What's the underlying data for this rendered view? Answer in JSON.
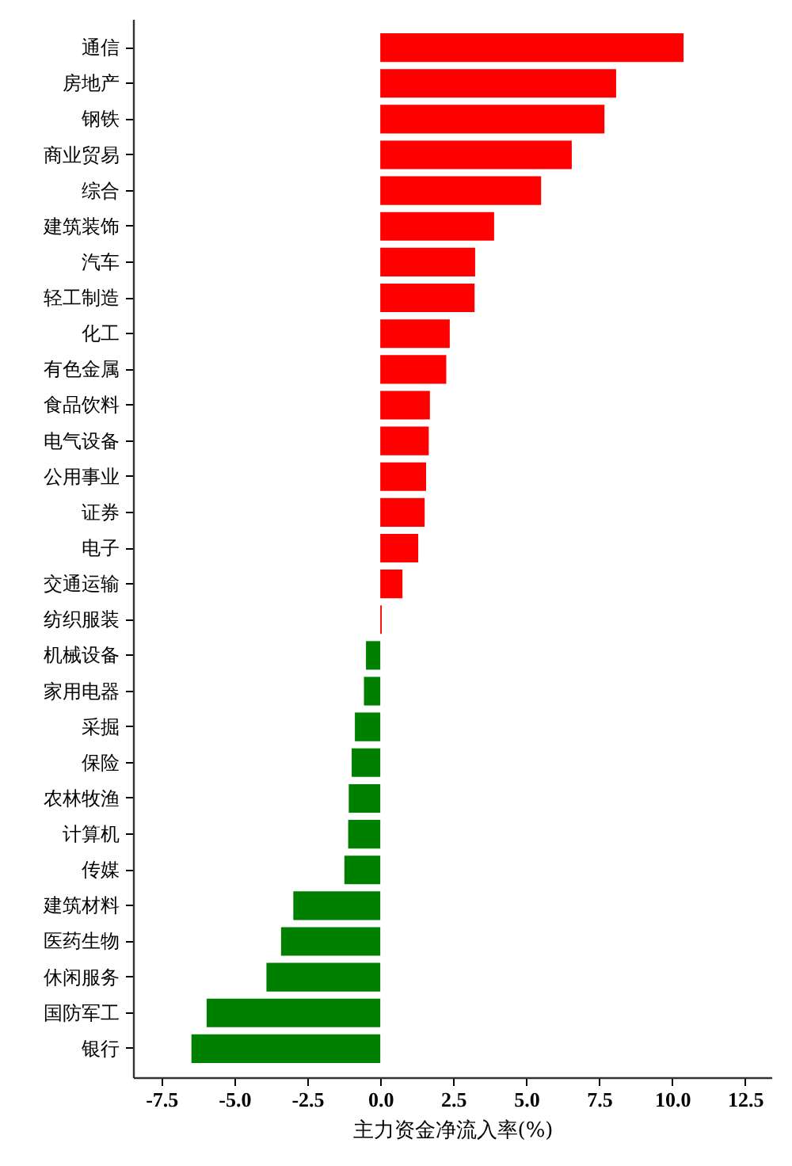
{
  "chart_data": {
    "type": "bar",
    "orientation": "horizontal",
    "xlabel": "主力资金净流入率(%)",
    "categories": [
      "通信",
      "房地产",
      "钢铁",
      "商业贸易",
      "综合",
      "建筑装饰",
      "汽车",
      "轻工制造",
      "化工",
      "有色金属",
      "食品饮料",
      "电气设备",
      "公用事业",
      "证券",
      "电子",
      "交通运输",
      "纺织服装",
      "机械设备",
      "家用电器",
      "采掘",
      "保险",
      "农林牧渔",
      "计算机",
      "传媒",
      "建筑材料",
      "医药生物",
      "休闲服务",
      "国防军工",
      "银行"
    ],
    "values": [
      10.39,
      8.08,
      7.68,
      6.56,
      5.51,
      3.9,
      3.25,
      3.23,
      2.38,
      2.26,
      1.7,
      1.66,
      1.57,
      1.52,
      1.3,
      0.76,
      0.05,
      -0.49,
      -0.56,
      -0.87,
      -0.98,
      -1.08,
      -1.1,
      -1.23,
      -2.98,
      -3.4,
      -3.9,
      -5.95,
      -6.47
    ],
    "colors": [
      "#ff0000",
      "#ff0000",
      "#ff0000",
      "#ff0000",
      "#ff0000",
      "#ff0000",
      "#ff0000",
      "#ff0000",
      "#ff0000",
      "#ff0000",
      "#ff0000",
      "#ff0000",
      "#ff0000",
      "#ff0000",
      "#ff0000",
      "#ff0000",
      "#ff0000",
      "#008000",
      "#008000",
      "#008000",
      "#008000",
      "#008000",
      "#008000",
      "#008000",
      "#008000",
      "#008000",
      "#008000",
      "#008000",
      "#008000"
    ],
    "xlim": [
      -8.47,
      13.4
    ],
    "xticks": [
      -7.5,
      {
        "value": -5,
        "label": "-5.0"
      },
      -2.5,
      {
        "value": 0,
        "label": "0.0"
      },
      2.5,
      {
        "value": 5,
        "label": "5.0"
      },
      7.5,
      {
        "value": 10,
        "label": "10.0"
      },
      12.5
    ],
    "grid": false
  }
}
